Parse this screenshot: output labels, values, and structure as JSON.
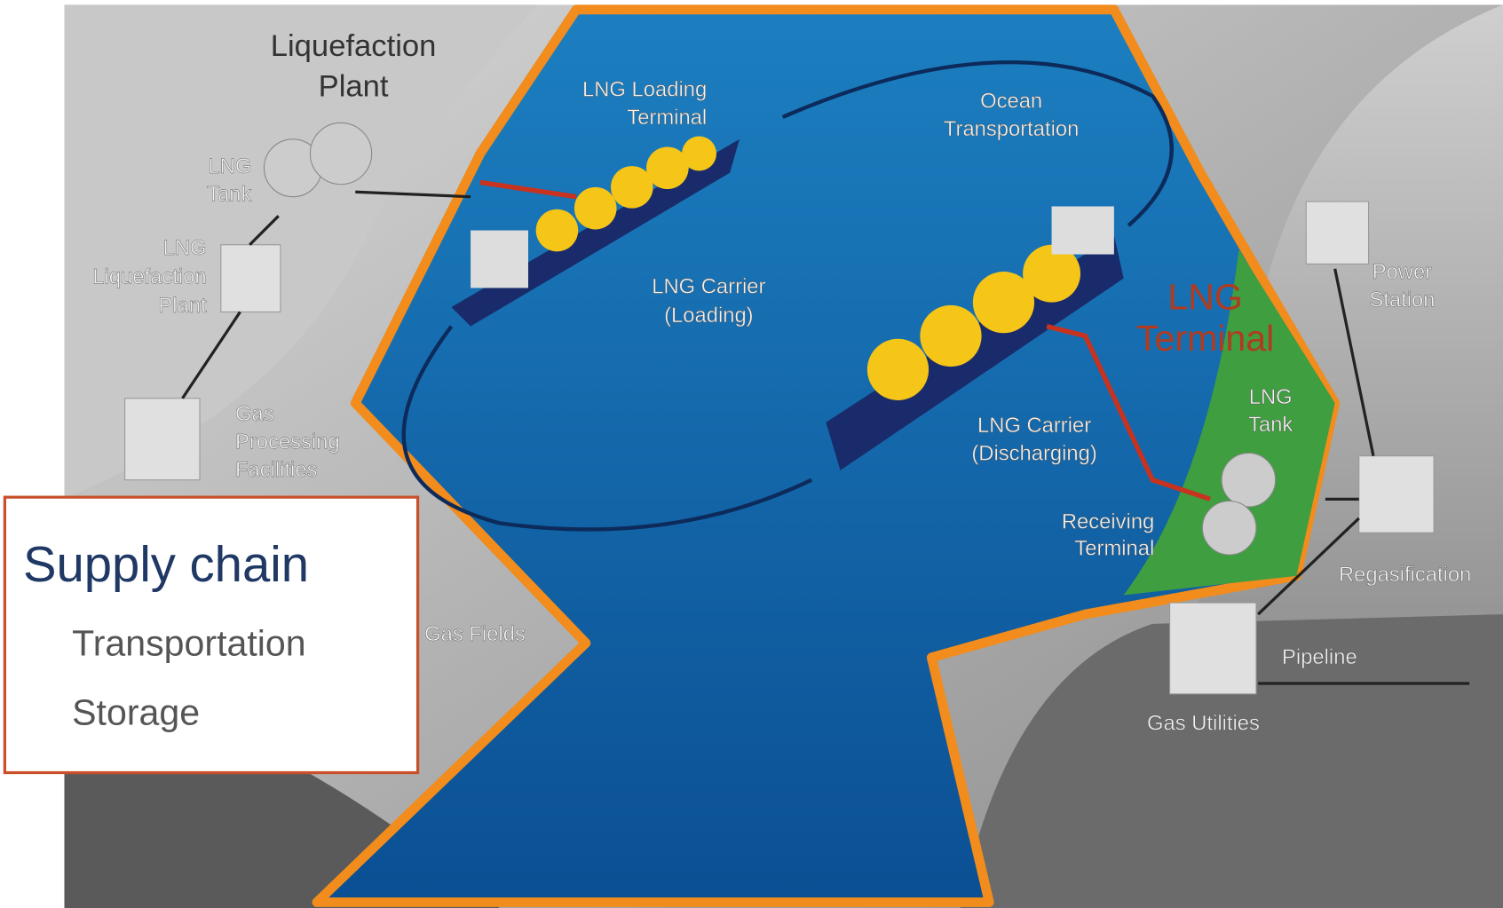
{
  "labels": [
    {
      "lines": [
        "Liquefaction",
        "Plant"
      ]
    },
    {
      "lines": [
        "LNG",
        "Tank"
      ]
    },
    {
      "lines": [
        "LNG",
        "Liquefaction",
        "Plant"
      ]
    },
    {
      "lines": [
        "Gas",
        "Processing",
        "Facilities"
      ]
    },
    {
      "lines": [
        "Gas Fields"
      ]
    },
    {
      "lines": [
        "LNG Loading",
        "Terminal"
      ]
    },
    {
      "lines": [
        "Ocean",
        "Transportation"
      ]
    },
    {
      "lines": [
        "LNG Carrier",
        "(Loading)"
      ]
    },
    {
      "lines": [
        "LNG Carrier",
        "(Discharging)"
      ]
    },
    {
      "lines": [
        "LNG",
        "Terminal"
      ]
    },
    {
      "lines": [
        "LNG",
        "Tank"
      ]
    },
    {
      "lines": [
        "Power",
        "Station"
      ]
    },
    {
      "lines": [
        "Receiving",
        "Terminal"
      ]
    },
    {
      "lines": [
        "Regasification"
      ]
    },
    {
      "lines": [
        "Pipeline"
      ]
    },
    {
      "lines": [
        "Gas Utilities"
      ]
    }
  ],
  "box": {
    "title": "Supply chain",
    "items": [
      "Transportation",
      "Storage"
    ]
  }
}
